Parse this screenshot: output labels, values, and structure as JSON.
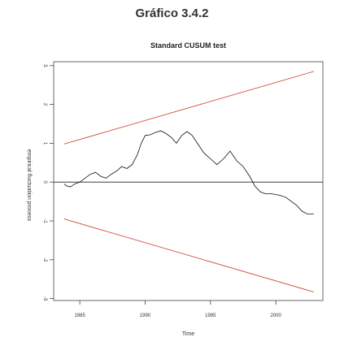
{
  "page_title": "Gráfico 3.4.2",
  "chart_data": {
    "type": "line",
    "title": "Standard CUSUM test",
    "xlabel": "Time",
    "ylabel": "empirical fluctuation process",
    "xlim": [
      1983,
      2003.6
    ],
    "ylim": [
      -3.05,
      3.1
    ],
    "x_ticks": [
      1985,
      1990,
      1995,
      2000
    ],
    "x_tick_labels": [
      "1985",
      "1990",
      "1995",
      "2000"
    ],
    "y_ticks": [
      -3,
      -2,
      -1,
      0,
      1,
      2,
      3
    ],
    "y_tick_labels": [
      "-3",
      "-2",
      "-1",
      "0",
      "1",
      "2",
      "3"
    ],
    "grid": false,
    "legend": "none",
    "reference_line_y": 0,
    "boundary_color": "#d44a3a",
    "process_color": "#111111",
    "upper_boundary": {
      "x": [
        1983.8,
        2002.9
      ],
      "y": [
        0.98,
        2.85
      ]
    },
    "lower_boundary": {
      "x": [
        1983.8,
        2002.9
      ],
      "y": [
        -0.95,
        -2.83
      ]
    },
    "series": [
      {
        "x": [
          1983.8,
          1984.0,
          1984.3,
          1984.6,
          1985.0,
          1985.4,
          1985.8,
          1986.2,
          1986.6,
          1987.0,
          1987.4,
          1987.8,
          1988.2,
          1988.6,
          1989.0,
          1989.4,
          1989.7,
          1990.0,
          1990.4,
          1990.8,
          1991.2,
          1991.6,
          1992.0,
          1992.4,
          1992.8,
          1993.2,
          1993.6,
          1994.0,
          1994.5,
          1995.0,
          1995.5,
          1996.0,
          1996.5,
          1997.0,
          1997.5,
          1998.0,
          1998.4,
          1998.8,
          1999.2,
          1999.6,
          2000.0,
          2000.4,
          2000.8,
          2001.2,
          2001.6,
          2002.0,
          2002.4,
          2002.9
        ],
        "y": [
          -0.05,
          -0.1,
          -0.12,
          -0.05,
          0.0,
          0.1,
          0.2,
          0.25,
          0.15,
          0.1,
          0.2,
          0.28,
          0.4,
          0.35,
          0.45,
          0.7,
          1.0,
          1.2,
          1.22,
          1.28,
          1.32,
          1.25,
          1.15,
          1.0,
          1.2,
          1.3,
          1.2,
          1.0,
          0.75,
          0.6,
          0.45,
          0.6,
          0.8,
          0.55,
          0.4,
          0.15,
          -0.1,
          -0.25,
          -0.3,
          -0.3,
          -0.32,
          -0.35,
          -0.4,
          -0.5,
          -0.6,
          -0.75,
          -0.82,
          -0.82
        ]
      }
    ]
  }
}
